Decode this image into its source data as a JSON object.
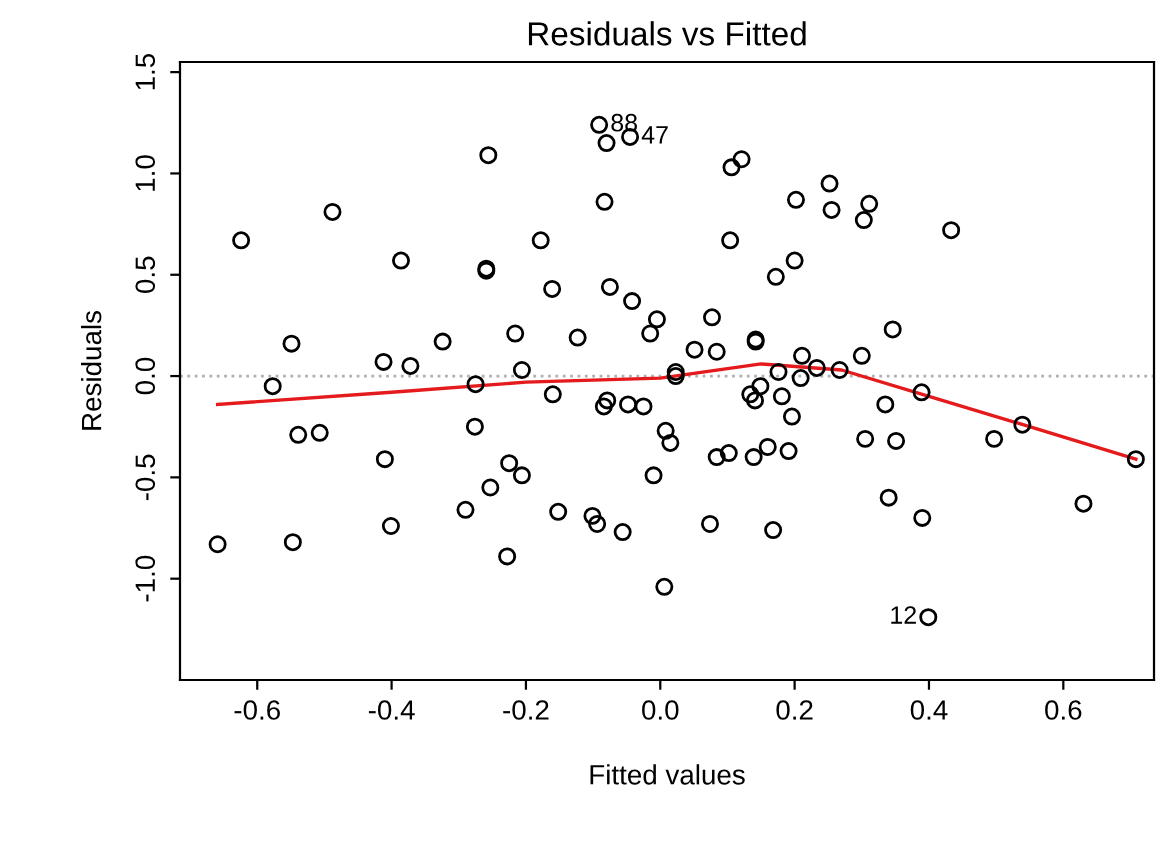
{
  "chart_data": {
    "type": "scatter",
    "title": "Residuals vs Fitted",
    "xlabel": "Fitted values",
    "ylabel": "Residuals",
    "xlim": [
      -0.715,
      0.735
    ],
    "ylim": [
      -1.5,
      1.55
    ],
    "xticks": [
      {
        "value": -0.6,
        "label": "-0.6"
      },
      {
        "value": -0.4,
        "label": "-0.4"
      },
      {
        "value": -0.2,
        "label": "-0.2"
      },
      {
        "value": 0.0,
        "label": "0.0"
      },
      {
        "value": 0.2,
        "label": "0.2"
      },
      {
        "value": 0.4,
        "label": "0.4"
      },
      {
        "value": 0.6,
        "label": "0.6"
      }
    ],
    "yticks": [
      {
        "value": -1.0,
        "label": "-1.0"
      },
      {
        "value": -0.5,
        "label": "-0.5"
      },
      {
        "value": 0.0,
        "label": "0.0"
      },
      {
        "value": 0.5,
        "label": "0.5"
      },
      {
        "value": 1.0,
        "label": "1.0"
      },
      {
        "value": 1.5,
        "label": "1.5"
      }
    ],
    "marker": "circle",
    "grid": false,
    "legend": false,
    "series": [
      {
        "color": "#000000",
        "x": [
          -0.624,
          -0.488,
          -0.549,
          -0.577,
          -0.386,
          -0.412,
          -0.372,
          -0.324,
          -0.256,
          -0.259,
          -0.259,
          -0.275,
          -0.178,
          -0.161,
          -0.216,
          -0.206,
          -0.123,
          -0.16,
          -0.091,
          -0.08,
          -0.045,
          -0.083,
          -0.075,
          -0.042,
          -0.005,
          -0.015,
          0.077,
          0.051,
          0.084,
          0.142,
          0.142,
          0.106,
          0.121,
          0.104,
          0.202,
          0.252,
          0.255,
          0.311,
          0.303,
          0.433,
          0.2,
          0.172,
          0.346,
          0.3,
          0.211,
          0.176,
          0.209,
          0.233,
          0.267,
          0.023,
          0.023,
          0.149,
          0.389,
          0.134,
          -0.079,
          -0.084,
          -0.048,
          -0.025,
          0.008,
          0.015,
          -0.01,
          -0.056,
          -0.094,
          -0.101,
          0.006,
          0.074,
          0.084,
          0.102,
          0.139,
          0.16,
          0.191,
          0.168,
          0.141,
          0.181,
          0.196,
          0.335,
          0.305,
          0.351,
          0.34,
          0.39,
          0.399,
          0.497,
          0.539,
          0.63,
          0.708,
          -0.659,
          -0.547,
          -0.539,
          -0.507,
          -0.41,
          -0.401,
          -0.29,
          -0.253,
          -0.276,
          -0.225,
          -0.206,
          -0.228,
          -0.152
        ],
        "values": [
          0.67,
          0.81,
          0.16,
          -0.05,
          0.57,
          0.07,
          0.05,
          0.17,
          1.09,
          0.52,
          0.53,
          -0.04,
          0.67,
          0.43,
          0.21,
          0.03,
          0.19,
          -0.09,
          1.24,
          1.15,
          1.18,
          0.86,
          0.44,
          0.37,
          0.28,
          0.21,
          0.29,
          0.13,
          0.12,
          0.17,
          0.18,
          1.03,
          1.07,
          0.67,
          0.87,
          0.95,
          0.82,
          0.85,
          0.77,
          0.72,
          0.57,
          0.49,
          0.23,
          0.1,
          0.1,
          0.02,
          -0.01,
          0.04,
          0.03,
          0.02,
          0.0,
          -0.05,
          -0.08,
          -0.09,
          -0.12,
          -0.15,
          -0.14,
          -0.15,
          -0.27,
          -0.33,
          -0.49,
          -0.77,
          -0.73,
          -0.69,
          -1.04,
          -0.73,
          -0.4,
          -0.38,
          -0.4,
          -0.35,
          -0.37,
          -0.76,
          -0.12,
          -0.1,
          -0.2,
          -0.14,
          -0.31,
          -0.32,
          -0.6,
          -0.7,
          -1.19,
          -0.31,
          -0.24,
          -0.63,
          -0.41,
          -0.83,
          -0.82,
          -0.29,
          -0.28,
          -0.41,
          -0.74,
          -0.66,
          -0.55,
          -0.25,
          -0.43,
          -0.49,
          -0.89,
          -0.67
        ]
      },
      {
        "type": "line",
        "color": "#e41a1c",
        "marker": "none",
        "x": [
          -0.659,
          -0.4,
          -0.2,
          0.0,
          0.15,
          0.27,
          0.4,
          0.54,
          0.708
        ],
        "values": [
          -0.14,
          -0.08,
          -0.03,
          -0.01,
          0.06,
          0.03,
          -0.1,
          -0.24,
          -0.41
        ]
      }
    ],
    "ref_lines": [
      {
        "axis": "y",
        "value": 0,
        "color": "#b0b0b0",
        "line_style": "dotted"
      }
    ],
    "annotations": [
      {
        "text": "88",
        "x": -0.091,
        "y": 1.24
      },
      {
        "text": "47",
        "x": -0.045,
        "y": 1.18
      },
      {
        "text": "12",
        "x": 0.399,
        "y": -1.19
      }
    ]
  }
}
